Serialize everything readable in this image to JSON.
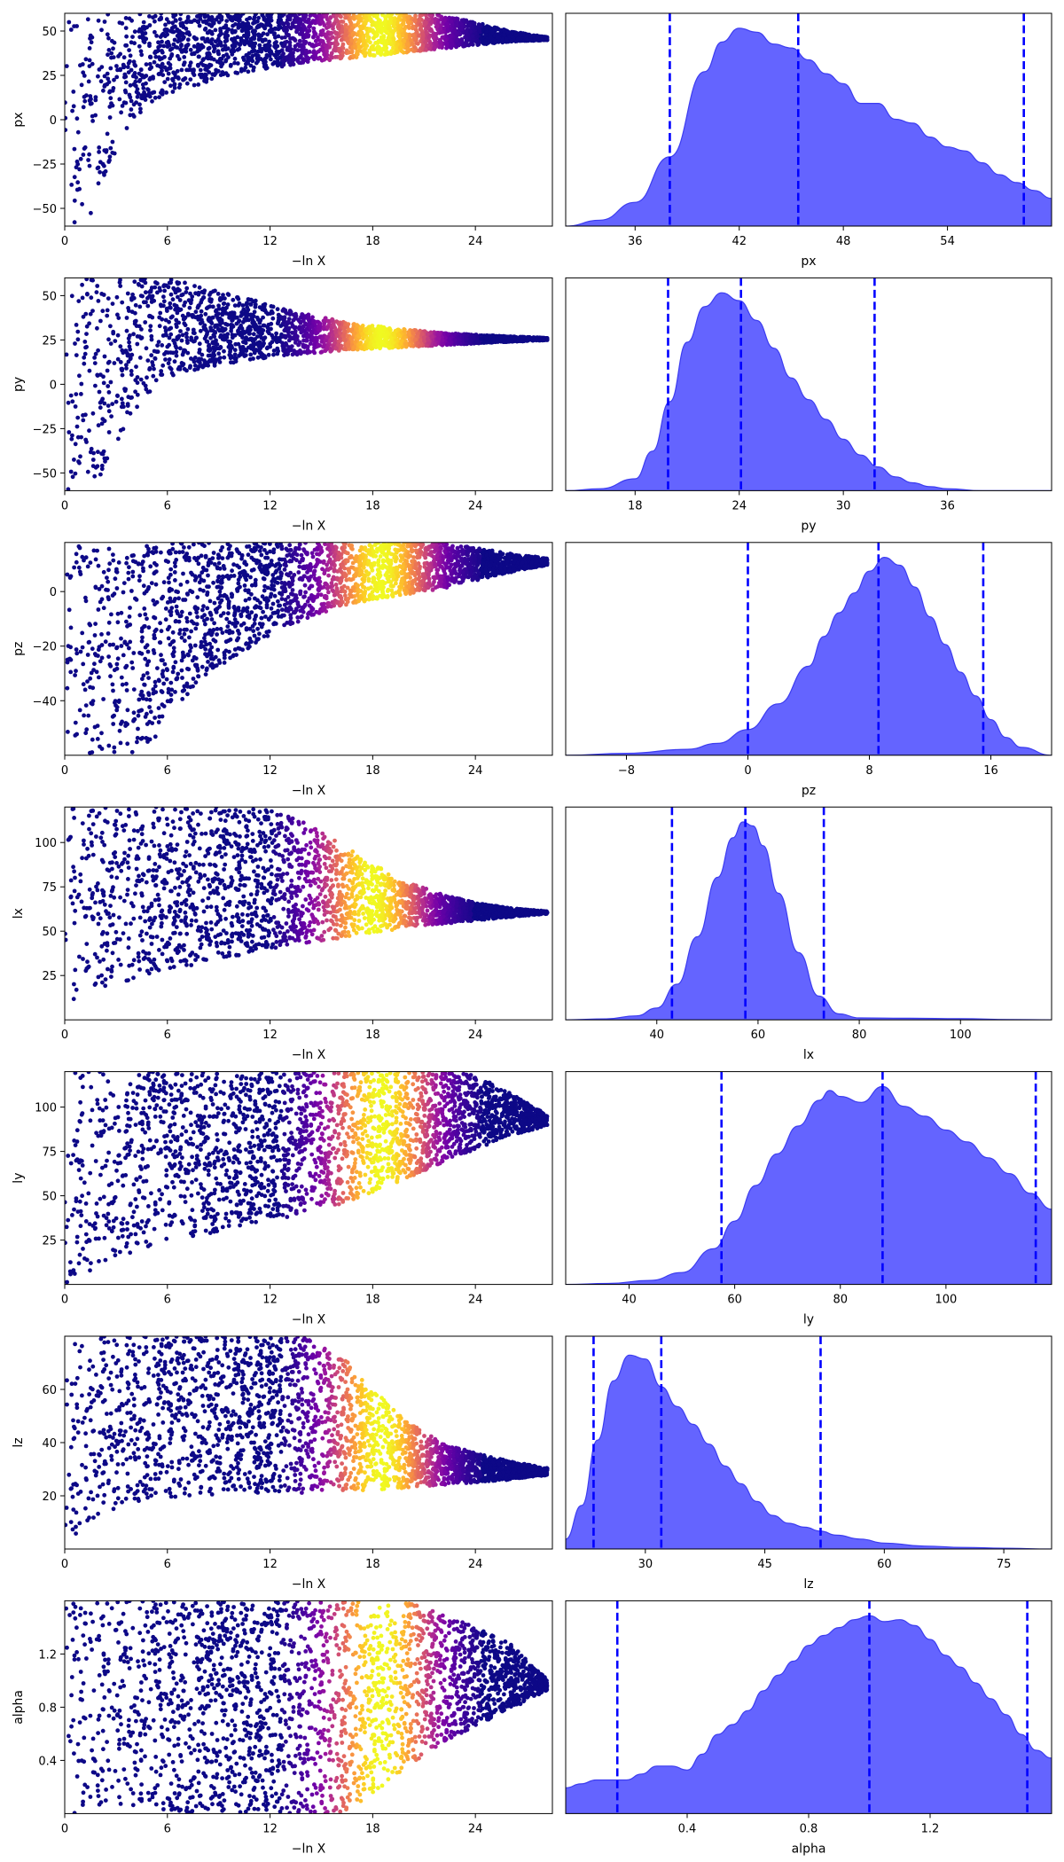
{
  "figure": {
    "scatter_xlabel": "−ln X"
  },
  "colors": {
    "low_weight": "#0d0887",
    "kde_fill": "#6464ff",
    "kde_edge": "#3c3cf0",
    "quantile_line": "#0000ff",
    "colormap": [
      "#0d0887",
      "#46039f",
      "#7201a8",
      "#9c179e",
      "#bd3786",
      "#d8576b",
      "#ed7953",
      "#fb9f3a",
      "#fdca26",
      "#f0f921"
    ]
  },
  "chart_data": [
    {
      "type": "scatter",
      "param": "px",
      "ylabel": "px",
      "xlim": [
        0,
        28.5
      ],
      "ylim": [
        -60,
        60
      ],
      "xticks": [
        0,
        6,
        12,
        18,
        24
      ],
      "yticks": [
        -50,
        -25,
        0,
        25,
        50
      ],
      "envelope_x": [
        0,
        0.5,
        1,
        1.5,
        2,
        3,
        4,
        6,
        8,
        10,
        12,
        14,
        16,
        18,
        20,
        22,
        24,
        26,
        28.5
      ],
      "envelope_lower": [
        -60,
        -60,
        -60,
        -55,
        -45,
        -18,
        0,
        14,
        20,
        26,
        29,
        32,
        34,
        36,
        38,
        40,
        42,
        44,
        45
      ],
      "envelope_upper": [
        60,
        60,
        60,
        60,
        60,
        60,
        60,
        60,
        60,
        60,
        60,
        60,
        60,
        60,
        60,
        59,
        55,
        50,
        46
      ],
      "peak_x": 18.5
    },
    {
      "type": "area",
      "param": "px",
      "xlabel": "px",
      "xlim": [
        32,
        60
      ],
      "xticks": [
        36,
        42,
        48,
        54
      ],
      "quantiles": [
        38,
        45.4,
        58.4
      ],
      "density_x": [
        32,
        34,
        36,
        38,
        40,
        41,
        42,
        43,
        44,
        45,
        46,
        47,
        48,
        49,
        50,
        51,
        52,
        53,
        54,
        55,
        56,
        57,
        58,
        59,
        60
      ],
      "density_y": [
        0.0,
        0.03,
        0.12,
        0.35,
        0.78,
        0.93,
        1.0,
        0.98,
        0.92,
        0.9,
        0.84,
        0.77,
        0.72,
        0.62,
        0.62,
        0.54,
        0.52,
        0.45,
        0.4,
        0.38,
        0.32,
        0.26,
        0.22,
        0.18,
        0.14
      ]
    },
    {
      "type": "scatter",
      "param": "py",
      "ylabel": "py",
      "xlim": [
        0,
        28.5
      ],
      "ylim": [
        -60,
        60
      ],
      "xticks": [
        0,
        6,
        12,
        18,
        24
      ],
      "yticks": [
        -50,
        -25,
        0,
        25,
        50
      ],
      "envelope_x": [
        0,
        1,
        2,
        3,
        4,
        5,
        6,
        8,
        10,
        12,
        14,
        16,
        18,
        20,
        22,
        24,
        26,
        28.5
      ],
      "envelope_lower": [
        -60,
        -60,
        -55,
        -35,
        -15,
        -5,
        3,
        9,
        12,
        15,
        17,
        19,
        20,
        21,
        22,
        23,
        24,
        25
      ],
      "envelope_upper": [
        60,
        60,
        60,
        60,
        60,
        60,
        60,
        55,
        50,
        45,
        40,
        36,
        33,
        31,
        29,
        28,
        27,
        26
      ],
      "peak_x": 18.5
    },
    {
      "type": "area",
      "param": "py",
      "xlabel": "py",
      "xlim": [
        14,
        42
      ],
      "xticks": [
        18,
        24,
        30,
        36
      ],
      "quantiles": [
        19.9,
        24.1,
        31.8
      ],
      "density_x": [
        14,
        16,
        18,
        19,
        20,
        21,
        22,
        23,
        24,
        25,
        26,
        27,
        28,
        29,
        30,
        31,
        32,
        33,
        34,
        35,
        36,
        38,
        40,
        42
      ],
      "density_y": [
        0.0,
        0.01,
        0.06,
        0.2,
        0.45,
        0.75,
        0.93,
        1.0,
        0.96,
        0.86,
        0.72,
        0.57,
        0.46,
        0.36,
        0.26,
        0.18,
        0.12,
        0.07,
        0.04,
        0.02,
        0.01,
        0.0,
        0.0,
        0.0
      ]
    },
    {
      "type": "scatter",
      "param": "pz",
      "ylabel": "pz",
      "xlim": [
        0,
        28.5
      ],
      "ylim": [
        -60,
        18
      ],
      "xticks": [
        0,
        6,
        12,
        18,
        24
      ],
      "yticks": [
        -40,
        -20,
        0
      ],
      "envelope_x": [
        0,
        2,
        4,
        5,
        6,
        8,
        10,
        12,
        14,
        16,
        18,
        20,
        22,
        24,
        26,
        28.5
      ],
      "envelope_lower": [
        -60,
        -60,
        -60,
        -60,
        -46,
        -32,
        -24,
        -16,
        -10,
        -6,
        -3,
        -1,
        1,
        4,
        7,
        10
      ],
      "envelope_upper": [
        18,
        18,
        18,
        18,
        18,
        18,
        18,
        18,
        18,
        18,
        18,
        18,
        18,
        16,
        14,
        12
      ],
      "peak_x": 18.5
    },
    {
      "type": "area",
      "param": "pz",
      "xlabel": "pz",
      "xlim": [
        -12,
        20
      ],
      "xticks": [
        -8,
        0,
        8,
        16
      ],
      "quantiles": [
        0,
        8.6,
        15.5
      ],
      "density_x": [
        -12,
        -8,
        -4,
        -2,
        0,
        2,
        4,
        5,
        6,
        7,
        8,
        9,
        10,
        11,
        12,
        13,
        14,
        15,
        16,
        17,
        18,
        20
      ],
      "density_y": [
        0.0,
        0.01,
        0.03,
        0.06,
        0.13,
        0.26,
        0.45,
        0.6,
        0.72,
        0.82,
        0.93,
        1.0,
        0.96,
        0.85,
        0.7,
        0.56,
        0.42,
        0.3,
        0.18,
        0.09,
        0.04,
        0.0
      ]
    },
    {
      "type": "scatter",
      "param": "lx",
      "ylabel": "lx",
      "xlim": [
        0,
        28.5
      ],
      "ylim": [
        0,
        120
      ],
      "xticks": [
        0,
        6,
        12,
        18,
        24
      ],
      "yticks": [
        25,
        50,
        75,
        100
      ],
      "envelope_x": [
        0,
        2,
        4,
        6,
        8,
        10,
        12,
        14,
        16,
        18,
        20,
        22,
        24,
        26,
        28.5
      ],
      "envelope_lower": [
        0,
        14,
        22,
        28,
        32,
        36,
        40,
        43,
        46,
        49,
        52,
        54,
        56,
        58,
        60
      ],
      "envelope_upper": [
        120,
        120,
        120,
        120,
        120,
        120,
        118,
        112,
        100,
        88,
        78,
        71,
        66,
        63,
        61
      ],
      "peak_x": 18
    },
    {
      "type": "area",
      "param": "lx",
      "xlabel": "lx",
      "xlim": [
        22,
        118
      ],
      "xticks": [
        40,
        60,
        80,
        100
      ],
      "quantiles": [
        43,
        57.5,
        73
      ],
      "density_x": [
        22,
        30,
        36,
        40,
        44,
        48,
        52,
        55,
        57,
        59,
        61,
        64,
        68,
        72,
        76,
        80,
        90,
        100,
        110,
        118
      ],
      "density_y": [
        0.0,
        0.005,
        0.02,
        0.06,
        0.18,
        0.42,
        0.72,
        0.92,
        1.0,
        0.98,
        0.88,
        0.64,
        0.34,
        0.12,
        0.03,
        0.01,
        0.008,
        0.006,
        0.002,
        0.0
      ]
    },
    {
      "type": "scatter",
      "param": "ly",
      "ylabel": "ly",
      "xlim": [
        0,
        28.5
      ],
      "ylim": [
        0,
        120
      ],
      "xticks": [
        0,
        6,
        12,
        18,
        24
      ],
      "yticks": [
        25,
        50,
        75,
        100
      ],
      "envelope_x": [
        0,
        2,
        4,
        6,
        8,
        10,
        12,
        14,
        16,
        18,
        20,
        22,
        24,
        26,
        28.5
      ],
      "envelope_lower": [
        0,
        10,
        18,
        24,
        28,
        32,
        36,
        40,
        45,
        52,
        60,
        68,
        76,
        84,
        90
      ],
      "envelope_upper": [
        120,
        120,
        120,
        120,
        120,
        120,
        120,
        120,
        120,
        120,
        120,
        120,
        118,
        108,
        94
      ],
      "peak_x": 18.5
    },
    {
      "type": "area",
      "param": "ly",
      "xlabel": "ly",
      "xlim": [
        28,
        120
      ],
      "xticks": [
        40,
        60,
        80,
        100
      ],
      "quantiles": [
        57.5,
        88,
        117
      ],
      "density_x": [
        28,
        36,
        44,
        50,
        56,
        60,
        64,
        68,
        72,
        76,
        78,
        80,
        84,
        88,
        92,
        96,
        100,
        104,
        108,
        112,
        116,
        120
      ],
      "density_y": [
        0.0,
        0.005,
        0.02,
        0.06,
        0.18,
        0.32,
        0.5,
        0.66,
        0.8,
        0.93,
        0.98,
        0.95,
        0.92,
        1.0,
        0.9,
        0.85,
        0.78,
        0.72,
        0.64,
        0.56,
        0.46,
        0.38
      ]
    },
    {
      "type": "scatter",
      "param": "lz",
      "ylabel": "lz",
      "xlim": [
        0,
        28.5
      ],
      "ylim": [
        0,
        80
      ],
      "xticks": [
        0,
        6,
        12,
        18,
        24
      ],
      "yticks": [
        20,
        40,
        60
      ],
      "envelope_x": [
        0,
        1,
        2,
        4,
        6,
        8,
        10,
        12,
        14,
        16,
        18,
        20,
        22,
        24,
        26,
        28.5
      ],
      "envelope_lower": [
        0,
        8,
        12,
        17,
        19,
        20,
        21,
        21,
        21,
        22,
        22,
        23,
        24,
        25,
        26,
        28
      ],
      "envelope_upper": [
        80,
        80,
        80,
        80,
        80,
        80,
        80,
        80,
        80,
        74,
        60,
        48,
        40,
        36,
        33,
        30
      ],
      "peak_x": 18.5
    },
    {
      "type": "area",
      "param": "lz",
      "xlabel": "lz",
      "xlim": [
        20,
        81
      ],
      "xticks": [
        30,
        45,
        60,
        75
      ],
      "quantiles": [
        23.5,
        32,
        52
      ],
      "density_x": [
        20,
        22,
        24,
        26,
        28,
        30,
        32,
        34,
        36,
        38,
        40,
        42,
        44,
        46,
        48,
        50,
        52,
        54,
        57,
        60,
        65,
        70,
        75,
        81
      ],
      "density_y": [
        0.05,
        0.22,
        0.55,
        0.85,
        0.98,
        0.96,
        0.82,
        0.72,
        0.63,
        0.53,
        0.42,
        0.33,
        0.24,
        0.17,
        0.13,
        0.11,
        0.09,
        0.07,
        0.05,
        0.03,
        0.015,
        0.008,
        0.004,
        0.0
      ]
    },
    {
      "type": "scatter",
      "param": "alpha",
      "ylabel": "alpha",
      "xlim": [
        0,
        28.5
      ],
      "ylim": [
        0,
        1.6
      ],
      "xticks": [
        0,
        6,
        12,
        18,
        24
      ],
      "yticks": [
        0.4,
        0.8,
        1.2
      ],
      "envelope_x": [
        0,
        2,
        4,
        6,
        8,
        10,
        12,
        14,
        16,
        18,
        20,
        22,
        24,
        26,
        28.5
      ],
      "envelope_lower": [
        0,
        0,
        0,
        0,
        0,
        0,
        0,
        0,
        0,
        0.12,
        0.35,
        0.52,
        0.66,
        0.78,
        0.95
      ],
      "envelope_upper": [
        1.6,
        1.6,
        1.6,
        1.6,
        1.6,
        1.6,
        1.6,
        1.6,
        1.6,
        1.6,
        1.6,
        1.5,
        1.4,
        1.28,
        0.97
      ],
      "peak_x": 18.5
    },
    {
      "type": "area",
      "param": "alpha",
      "xlabel": "alpha",
      "xlim": [
        0.0,
        1.6
      ],
      "xticks": [
        0.4,
        0.8,
        1.2
      ],
      "quantiles": [
        0.17,
        1.0,
        1.52
      ],
      "density_x": [
        0.0,
        0.05,
        0.1,
        0.15,
        0.2,
        0.25,
        0.3,
        0.35,
        0.4,
        0.45,
        0.5,
        0.55,
        0.6,
        0.65,
        0.7,
        0.75,
        0.8,
        0.85,
        0.9,
        0.95,
        1.0,
        1.05,
        1.1,
        1.15,
        1.2,
        1.25,
        1.3,
        1.35,
        1.4,
        1.45,
        1.5,
        1.55,
        1.6
      ],
      "density_y": [
        0.13,
        0.15,
        0.17,
        0.17,
        0.17,
        0.2,
        0.24,
        0.24,
        0.22,
        0.3,
        0.4,
        0.45,
        0.52,
        0.62,
        0.7,
        0.77,
        0.85,
        0.9,
        0.94,
        0.98,
        1.0,
        0.97,
        0.98,
        0.95,
        0.88,
        0.8,
        0.74,
        0.66,
        0.58,
        0.5,
        0.4,
        0.32,
        0.28
      ]
    }
  ]
}
